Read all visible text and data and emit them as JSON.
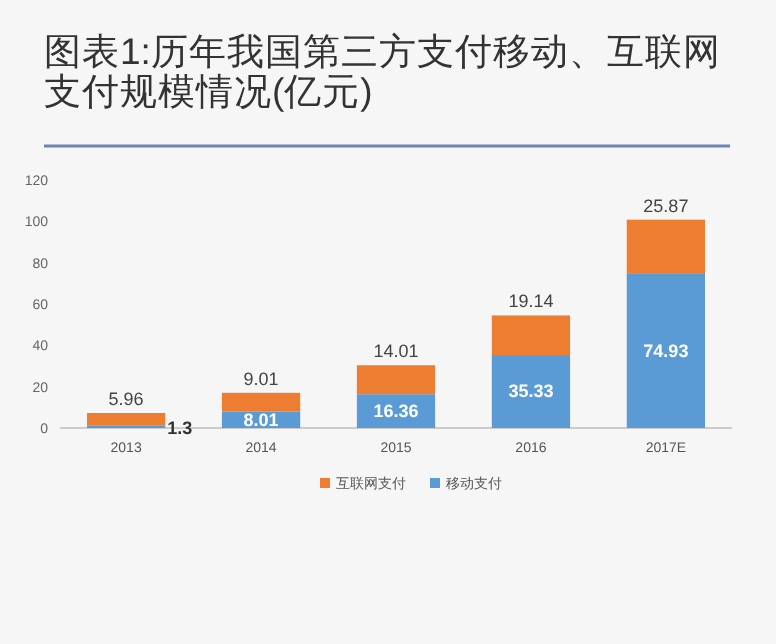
{
  "chart_data": {
    "type": "bar",
    "title": "图表1:历年我国第三方支付移动、互联网支付规模情况(亿元)",
    "categories": [
      "2013",
      "2014",
      "2015",
      "2016",
      "2017E"
    ],
    "stacked": true,
    "series": [
      {
        "name": "移动支付",
        "color": "#5b9bd5",
        "values": [
          1.3,
          8.01,
          16.36,
          35.33,
          74.93
        ]
      },
      {
        "name": "互联网支付",
        "color": "#ed7d31",
        "values": [
          5.96,
          9.01,
          14.01,
          19.14,
          25.87
        ]
      }
    ],
    "ylim": [
      0,
      120
    ],
    "yticks": [
      0,
      20,
      40,
      60,
      80,
      100,
      120
    ],
    "grid": false,
    "legend": "bottom",
    "data_labels": true
  }
}
